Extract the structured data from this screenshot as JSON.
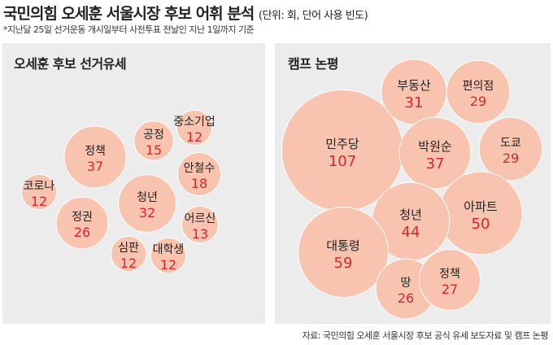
{
  "header": {
    "title": "국민의힘 오세훈 서울시장 후보 어휘 분석",
    "unit": "(단위: 회, 단어 사용 빈도)",
    "note": "*지난달 25일 선거운동 개시일부터 사전투표 전날인 지난 1일까지 기준"
  },
  "source": "자료: 국민의힘 오세훈 서울시장 후보 공식 유세 보도자료 및 캠프 논평",
  "colors": {
    "bubble": "#f8c4b0",
    "number": "#d7262c",
    "label": "#222222",
    "panel": "#ececec"
  },
  "chart_data": [
    {
      "type": "bubble",
      "title": "오세훈 후보 선거유세",
      "items": [
        {
          "label": "정책",
          "value": 37
        },
        {
          "label": "공정",
          "value": 15
        },
        {
          "label": "중소기업",
          "value": 12
        },
        {
          "label": "안철수",
          "value": 18
        },
        {
          "label": "코로나",
          "value": 12
        },
        {
          "label": "청년",
          "value": 32
        },
        {
          "label": "정권",
          "value": 26
        },
        {
          "label": "어르신",
          "value": 13
        },
        {
          "label": "심판",
          "value": 12
        },
        {
          "label": "대학생",
          "value": 12
        }
      ]
    },
    {
      "type": "bubble",
      "title": "캠프 논평",
      "items": [
        {
          "label": "민주당",
          "value": 107
        },
        {
          "label": "부동산",
          "value": 31
        },
        {
          "label": "편의점",
          "value": 29
        },
        {
          "label": "박원순",
          "value": 37
        },
        {
          "label": "도쿄",
          "value": 29
        },
        {
          "label": "아파트",
          "value": 50
        },
        {
          "label": "청년",
          "value": 44
        },
        {
          "label": "대통령",
          "value": 59
        },
        {
          "label": "땅",
          "value": 26
        },
        {
          "label": "정책",
          "value": 27
        }
      ]
    }
  ]
}
